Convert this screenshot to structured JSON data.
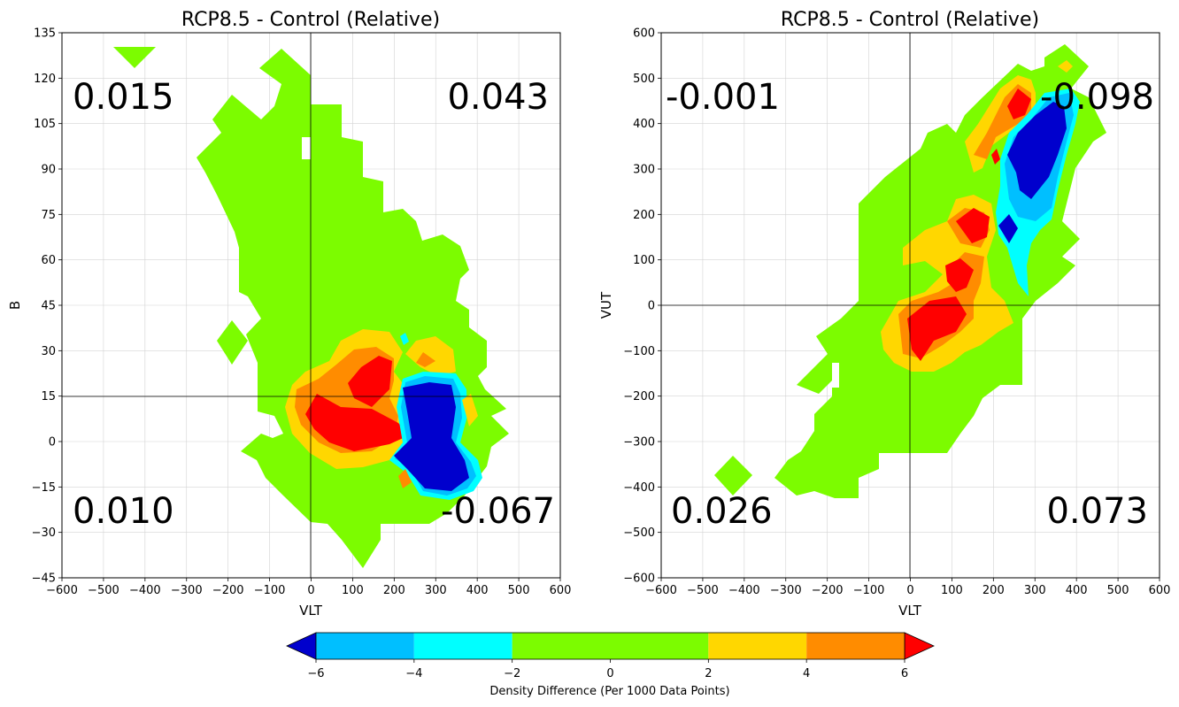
{
  "chart_data": [
    {
      "type": "heatmap",
      "title": "RCP8.5 - Control (Relative)",
      "xlabel": "VLT",
      "ylabel": "B",
      "xlim": [
        -600,
        600
      ],
      "ylim": [
        -45,
        135
      ],
      "xticks": [
        "−600",
        "−500",
        "−400",
        "−300",
        "−200",
        "−100",
        "0",
        "100",
        "200",
        "300",
        "400",
        "500",
        "600"
      ],
      "xtick_values": [
        -600,
        -500,
        -400,
        -300,
        -200,
        -100,
        0,
        100,
        200,
        300,
        400,
        500,
        600
      ],
      "yticks": [
        "−45",
        "−30",
        "−15",
        "0",
        "15",
        "30",
        "45",
        "60",
        "75",
        "90",
        "105",
        "120",
        "135"
      ],
      "ytick_values": [
        -45,
        -30,
        -15,
        0,
        15,
        30,
        45,
        60,
        75,
        90,
        105,
        120,
        135
      ],
      "grid": true,
      "reference_lines": {
        "x": 0,
        "y": 15
      },
      "quadrant_values": {
        "top_left": "0.015",
        "top_right": "0.043",
        "bottom_left": "0.010",
        "bottom_right": "-0.067"
      }
    },
    {
      "type": "heatmap",
      "title": "RCP8.5 - Control (Relative)",
      "xlabel": "VLT",
      "ylabel": "VUT",
      "xlim": [
        -600,
        600
      ],
      "ylim": [
        -600,
        600
      ],
      "xticks": [
        "−600",
        "−500",
        "−400",
        "−300",
        "−200",
        "−100",
        "0",
        "100",
        "200",
        "300",
        "400",
        "500",
        "600"
      ],
      "xtick_values": [
        -600,
        -500,
        -400,
        -300,
        -200,
        -100,
        0,
        100,
        200,
        300,
        400,
        500,
        600
      ],
      "yticks": [
        "−600",
        "−500",
        "−400",
        "−300",
        "−200",
        "−100",
        "0",
        "100",
        "200",
        "300",
        "400",
        "500",
        "600"
      ],
      "ytick_values": [
        -600,
        -500,
        -400,
        -300,
        -200,
        -100,
        0,
        100,
        200,
        300,
        400,
        500,
        600
      ],
      "grid": true,
      "reference_lines": {
        "x": 0,
        "y": 0
      },
      "quadrant_values": {
        "top_left": "-0.001",
        "top_right": "-0.098",
        "bottom_left": "0.026",
        "bottom_right": "0.073"
      }
    }
  ],
  "colorbar": {
    "label": "Density Difference (Per 1000 Data Points)",
    "ticks": [
      "−6",
      "−4",
      "−2",
      "0",
      "2",
      "4",
      "6"
    ],
    "levels": [
      -6,
      -4,
      -2,
      0,
      2,
      4,
      6
    ],
    "colors": {
      "below": "#0000cd",
      "bins": [
        "#00bfff",
        "#00ffff",
        "#7cfc00",
        "#7cfc00",
        "#ffd700",
        "#ff8c00"
      ],
      "above": "#ff0000"
    }
  }
}
